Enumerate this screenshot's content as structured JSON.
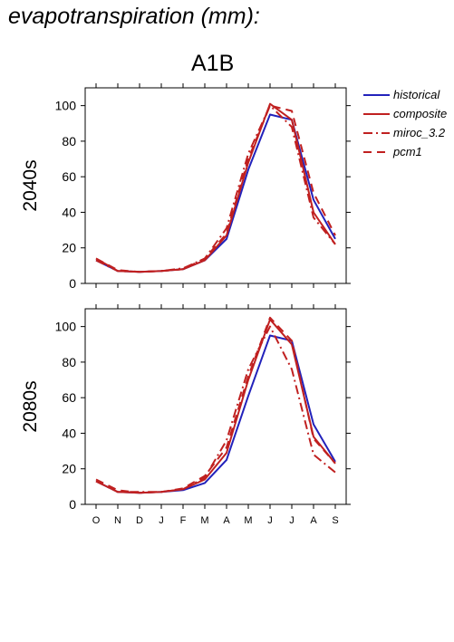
{
  "title": "evapotranspiration (mm):",
  "scenario": "A1B",
  "colors": {
    "historical": "#2222bb",
    "projection": "#c02020"
  },
  "legend": [
    {
      "name": "historical",
      "color": "#2222bb",
      "dash": "solid"
    },
    {
      "name": "composite",
      "color": "#c02020",
      "dash": "solid"
    },
    {
      "name": "miroc_3.2",
      "color": "#c02020",
      "dash": "dashdot"
    },
    {
      "name": "pcm1",
      "color": "#c02020",
      "dash": "dashed"
    }
  ],
  "chart_data": [
    {
      "type": "line",
      "panel_label": "2040s",
      "categories": [
        "O",
        "N",
        "D",
        "J",
        "F",
        "M",
        "A",
        "M",
        "J",
        "J",
        "A",
        "S"
      ],
      "ylim": [
        0,
        110
      ],
      "yticks": [
        0,
        20,
        40,
        60,
        80,
        100
      ],
      "series": [
        {
          "name": "historical",
          "values": [
            13,
            7,
            6.5,
            7,
            8,
            13,
            25,
            64,
            95,
            92,
            47,
            25
          ]
        },
        {
          "name": "composite",
          "values": [
            14,
            7,
            6.5,
            7,
            8,
            13,
            27,
            68,
            101,
            92,
            40,
            22
          ]
        },
        {
          "name": "miroc_3.2",
          "values": [
            13,
            7,
            6.5,
            7,
            8.5,
            14,
            31,
            73,
            100,
            88,
            37,
            22
          ]
        },
        {
          "name": "pcm1",
          "values": [
            14,
            7.5,
            6.5,
            7,
            8,
            14,
            28,
            70,
            100,
            97,
            51,
            27
          ]
        }
      ]
    },
    {
      "type": "line",
      "panel_label": "2080s",
      "categories": [
        "O",
        "N",
        "D",
        "J",
        "F",
        "M",
        "A",
        "M",
        "J",
        "J",
        "A",
        "S"
      ],
      "ylim": [
        0,
        110
      ],
      "yticks": [
        0,
        20,
        40,
        60,
        80,
        100
      ],
      "series": [
        {
          "name": "historical",
          "values": [
            13,
            7,
            6.5,
            7,
            8,
            12,
            25,
            61,
            95,
            92,
            45,
            24
          ]
        },
        {
          "name": "composite",
          "values": [
            13,
            7,
            6.5,
            7,
            8.5,
            14,
            29,
            70,
            104,
            90,
            38,
            23
          ]
        },
        {
          "name": "miroc_3.2",
          "values": [
            13,
            7,
            7,
            7,
            8.5,
            15,
            36,
            76,
            100,
            76,
            28,
            18
          ]
        },
        {
          "name": "pcm1",
          "values": [
            14,
            8,
            6.5,
            7,
            9,
            16,
            32,
            72,
            105,
            92,
            37,
            23
          ]
        }
      ]
    }
  ]
}
